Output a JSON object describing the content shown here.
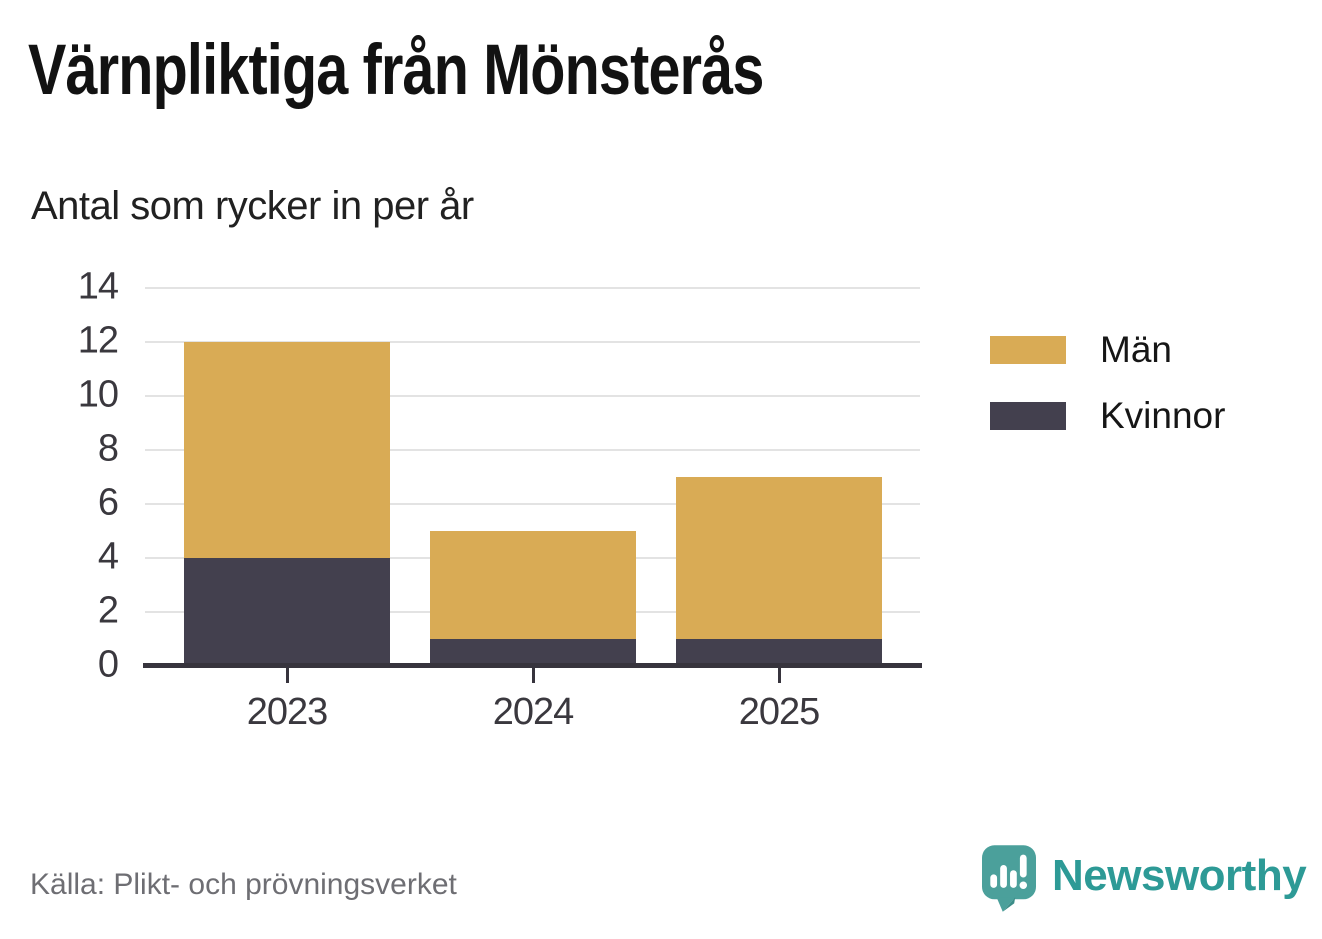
{
  "header": {
    "title": "Värnpliktiga från Mönsterås",
    "subtitle": "Antal som rycker in per år"
  },
  "chart_data": {
    "type": "bar",
    "stacked": true,
    "title": "Värnpliktiga från Mönsterås",
    "subtitle": "Antal som rycker in per år",
    "categories": [
      "2023",
      "2024",
      "2025"
    ],
    "series": [
      {
        "name": "Män",
        "color": "#D9AB55",
        "values": [
          8,
          4,
          6
        ]
      },
      {
        "name": "Kvinnor",
        "color": "#43404E",
        "values": [
          4,
          1,
          1
        ]
      }
    ],
    "stack_order_bottom_to_top": [
      "Kvinnor",
      "Män"
    ],
    "totals": [
      12,
      5,
      7
    ],
    "xlabel": "",
    "ylabel": "",
    "ylim": [
      0,
      14
    ],
    "yticks": [
      0,
      2,
      4,
      6,
      8,
      10,
      12,
      14
    ],
    "grid": true,
    "legend_position": "right"
  },
  "footer": {
    "source": "Källa: Plikt- och prövningsverket",
    "brand": "Newsworthy"
  },
  "colors": {
    "background": "#FFFFFF",
    "title_text": "#121212",
    "axis_text": "#3A383E",
    "grid_line": "#E3E3E3",
    "axis_line": "#37343D",
    "source_text": "#6E6E73",
    "brand_teal": "#2D9A96",
    "logo_bubble": "#4BA09B",
    "logo_bubble_shade": "#3C8D88"
  }
}
